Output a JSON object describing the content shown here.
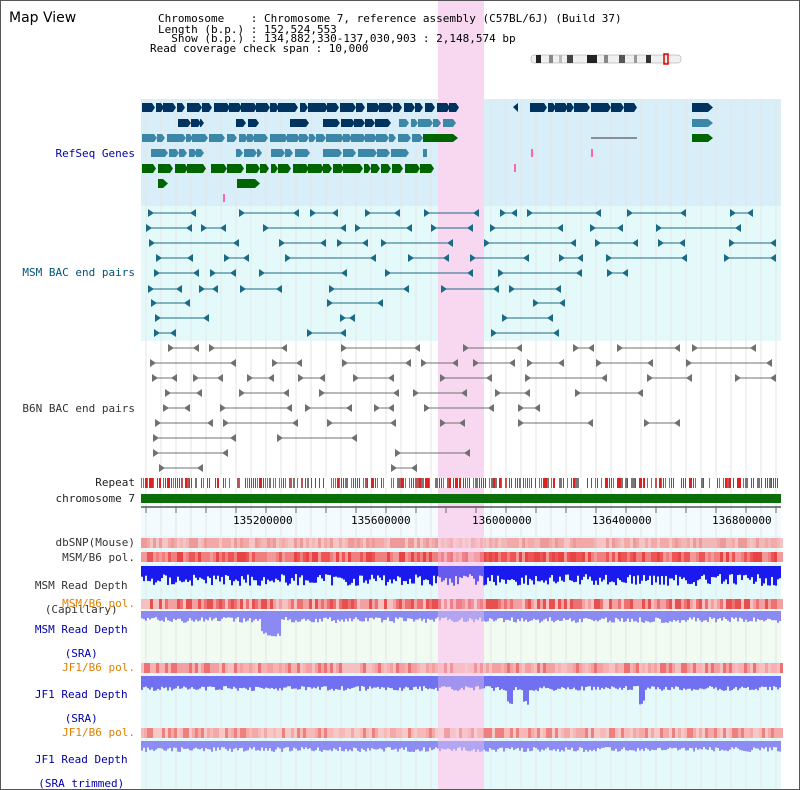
{
  "app": {
    "title": "Map View"
  },
  "info": {
    "line1": "Chromosome    : Chromosome 7, reference assembly (C57BL/6J) (Build 37)",
    "line2": "Length (b.p.) : 152,524,553",
    "line3": "  Show (b.p.) : 134,882,330-137,030,903 : 2,148,574 bp",
    "line4": "Read coverage check span : 10,000"
  },
  "tracks": {
    "refseq": "RefSeq Genes",
    "msm_bac": "MSM BAC end pairs",
    "b6n_bac": "B6N BAC end pairs",
    "repeat": "Repeat",
    "chromosome": "chromosome 7",
    "dbsnp": "dbSNP(Mouse)",
    "msm_b6_pol": "MSM/B6 pol.",
    "msm_read_cap_1": "MSM Read Depth",
    "msm_read_cap_2": "(Capillary)",
    "msm_b6_pol2": "MSM/B6 pol.",
    "msm_read_sra_1": "MSM Read Depth",
    "msm_read_sra_2": "(SRA)",
    "jf1_b6_pol": "JF1/B6 pol.",
    "jf1_read_sra_1": "JF1 Read Depth",
    "jf1_read_sra_2": "(SRA)",
    "jf1_b6_pol2": "JF1/B6 pol.",
    "jf1_read_trim_1": "JF1 Read Depth",
    "jf1_read_trim_2": "(SRA trimmed)"
  },
  "axis": {
    "ticks": [
      "135200000",
      "135600000",
      "136000000",
      "136400000",
      "136800000"
    ]
  },
  "colors": {
    "highlight": "#f8d8f0",
    "refseq_bg": "#d8eef8",
    "bac_bg": "#e4fafa",
    "gene_navy": "#00335f",
    "gene_steel": "#3c86a8",
    "gene_green": "#006400",
    "bac_teal": "#1b6a86",
    "bac_grey": "#707070",
    "depth_blue": "#1a1aee",
    "depth_lavender": "#8080f0"
  }
}
